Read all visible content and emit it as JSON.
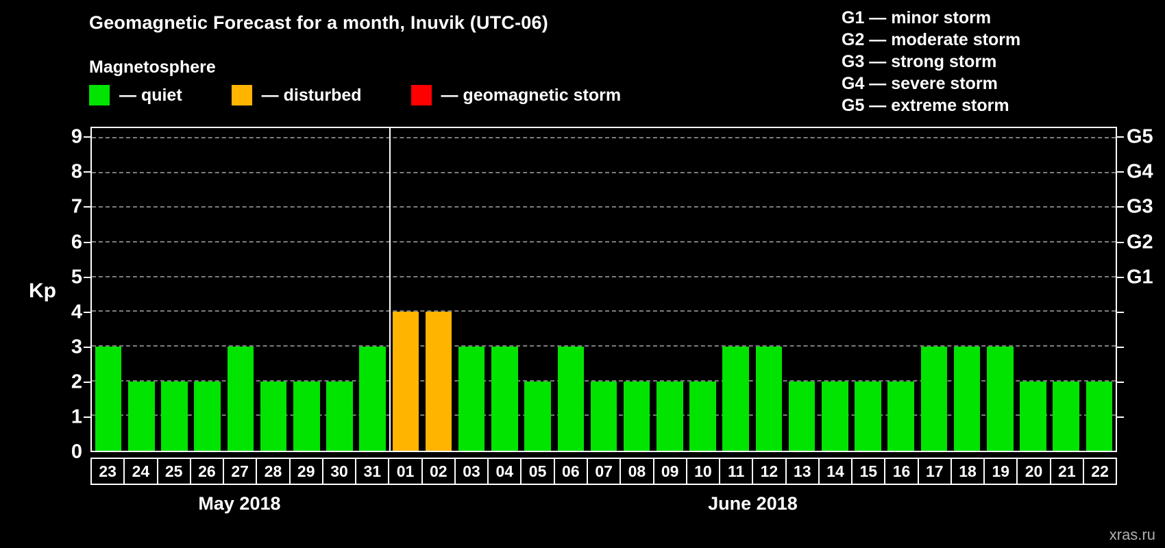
{
  "header": {
    "title": "Geomagnetic Forecast for a month, Inuvik (UTC-06)"
  },
  "legend": {
    "heading": "Magnetosphere",
    "items": [
      {
        "label": "— quiet",
        "status": "quiet"
      },
      {
        "label": "— disturbed",
        "status": "disturbed"
      },
      {
        "label": "— geomagnetic storm",
        "status": "storm"
      }
    ]
  },
  "storm_scale": {
    "lines": [
      "G1 — minor storm",
      "G2 — moderate storm",
      "G3 — strong storm",
      "G4 — severe storm",
      "G5 — extreme storm"
    ]
  },
  "colors": {
    "quiet": "#00e400",
    "disturbed": "#ffb400",
    "storm": "#ff0000",
    "grid": "#7d7d7d",
    "axis": "#ffffff",
    "text": "#ffffff",
    "watermark": "#b0b0b0",
    "background": "#000000"
  },
  "watermark": "xras.ru",
  "chart_data": {
    "type": "bar",
    "title": "Geomagnetic Forecast for a month, Inuvik (UTC-06)",
    "ylabel": "Kp",
    "xlabel": "",
    "ylim": [
      0,
      9
    ],
    "yticks": [
      0,
      1,
      2,
      3,
      4,
      5,
      6,
      7,
      8,
      9
    ],
    "grid": "horizontal-dashed",
    "right_axis_labels": [
      {
        "label": "G1",
        "kp": 5
      },
      {
        "label": "G2",
        "kp": 6
      },
      {
        "label": "G3",
        "kp": 7
      },
      {
        "label": "G4",
        "kp": 8
      },
      {
        "label": "G5",
        "kp": 9
      }
    ],
    "categories": [
      "23",
      "24",
      "25",
      "26",
      "27",
      "28",
      "29",
      "30",
      "31",
      "01",
      "02",
      "03",
      "04",
      "05",
      "06",
      "07",
      "08",
      "09",
      "10",
      "11",
      "12",
      "13",
      "14",
      "15",
      "16",
      "17",
      "18",
      "19",
      "20",
      "21",
      "22"
    ],
    "values": [
      3,
      2,
      2,
      2,
      3,
      2,
      2,
      2,
      3,
      4,
      4,
      3,
      3,
      2,
      3,
      2,
      2,
      2,
      2,
      3,
      3,
      2,
      2,
      2,
      2,
      3,
      3,
      3,
      2,
      2,
      2
    ],
    "statuses": [
      "quiet",
      "quiet",
      "quiet",
      "quiet",
      "quiet",
      "quiet",
      "quiet",
      "quiet",
      "quiet",
      "disturbed",
      "disturbed",
      "quiet",
      "quiet",
      "quiet",
      "quiet",
      "quiet",
      "quiet",
      "quiet",
      "quiet",
      "quiet",
      "quiet",
      "quiet",
      "quiet",
      "quiet",
      "quiet",
      "quiet",
      "quiet",
      "quiet",
      "quiet",
      "quiet",
      "quiet"
    ],
    "months": [
      {
        "label": "May 2018",
        "days": 9
      },
      {
        "label": "June 2018",
        "days": 22
      }
    ],
    "separator_after_index": 8
  }
}
